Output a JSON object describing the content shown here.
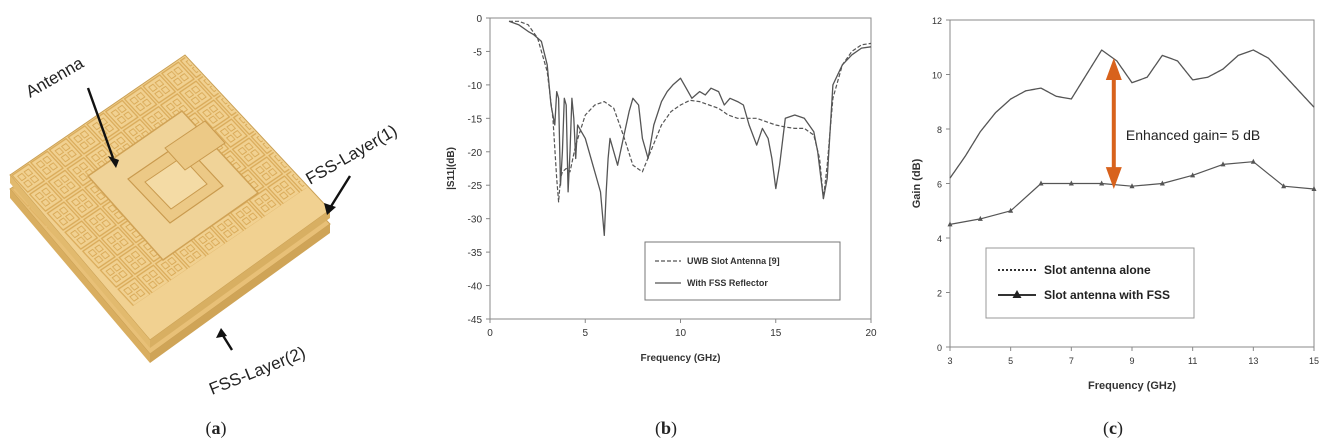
{
  "panel_a": {
    "caption_open": "(",
    "caption_letter": "a",
    "caption_close": ")",
    "labels": {
      "antenna": "Antenna",
      "fss_layer1": "FSS-Layer(1)",
      "fss_layer2": "FSS-Layer(2)"
    },
    "colors": {
      "board": "#f0cf8c",
      "board_edge": "#d6ac5c",
      "cell": "#e6bf72"
    }
  },
  "panel_b": {
    "caption_open": "(",
    "caption_letter": "b",
    "caption_close": ")"
  },
  "panel_c": {
    "caption_open": "(",
    "caption_letter": "c",
    "caption_close": ")",
    "annotation": "Enhanced gain= 5 dB",
    "arrow_color": "#d8621c"
  },
  "chart_data": [
    {
      "type": "line",
      "panel": "b",
      "xlabel": "Frequency (GHz)",
      "ylabel": "|S11|(dB)",
      "xlim": [
        0,
        20
      ],
      "ylim": [
        -45,
        0
      ],
      "xticks": [
        "0",
        "5",
        "10",
        "15",
        "20"
      ],
      "yticks": [
        "0",
        "-5",
        "-10",
        "-15",
        "-20",
        "-25",
        "-30",
        "-35",
        "-40",
        "-45"
      ],
      "grid": false,
      "legend_position": "lower-right",
      "series": [
        {
          "name": "UWB Slot Antenna [9]",
          "style": "dashed",
          "x": [
            1.0,
            1.5,
            2.0,
            2.5,
            3.0,
            3.3,
            3.5,
            3.6,
            3.7,
            3.8,
            4.0,
            4.2,
            4.5,
            5.0,
            5.5,
            6.0,
            6.5,
            7.0,
            7.5,
            8.0,
            8.5,
            9.0,
            9.5,
            10.0,
            10.5,
            11.0,
            11.5,
            12.0,
            12.5,
            13.0,
            13.5,
            14.0,
            14.5,
            15.0,
            15.5,
            16.0,
            16.5,
            17.0,
            17.3,
            17.5,
            17.7,
            18.0,
            18.5,
            19.0,
            19.5,
            20.0
          ],
          "y": [
            -0.5,
            -0.5,
            -1.0,
            -3.0,
            -8.0,
            -15.0,
            -24.0,
            -27.5,
            -24.0,
            -23.0,
            -22.5,
            -23.0,
            -19.0,
            -14.5,
            -13.0,
            -12.5,
            -13.5,
            -17.5,
            -22.0,
            -23.0,
            -19.5,
            -16.0,
            -14.0,
            -13.0,
            -12.3,
            -12.5,
            -13.0,
            -13.5,
            -14.5,
            -15.0,
            -15.0,
            -15.0,
            -15.5,
            -16.0,
            -16.3,
            -16.5,
            -16.5,
            -17.5,
            -21.0,
            -27.0,
            -22.0,
            -12.0,
            -7.0,
            -5.0,
            -4.0,
            -3.8
          ]
        },
        {
          "name": "With FSS Reflector",
          "style": "solid",
          "x": [
            1.0,
            1.5,
            2.0,
            2.3,
            2.7,
            3.0,
            3.2,
            3.4,
            3.5,
            3.6,
            3.7,
            3.8,
            3.9,
            4.0,
            4.1,
            4.2,
            4.3,
            4.4,
            4.5,
            4.6,
            4.8,
            5.0,
            5.2,
            5.4,
            5.6,
            5.8,
            6.0,
            6.1,
            6.2,
            6.3,
            6.5,
            6.7,
            7.0,
            7.3,
            7.5,
            7.8,
            8.0,
            8.3,
            8.6,
            9.0,
            9.3,
            9.6,
            10.0,
            10.3,
            10.6,
            11.0,
            11.3,
            11.6,
            12.0,
            12.3,
            12.6,
            13.0,
            13.3,
            13.6,
            14.0,
            14.3,
            14.6,
            14.8,
            15.0,
            15.2,
            15.5,
            16.0,
            16.5,
            17.0,
            17.2,
            17.5,
            17.7,
            18.0,
            18.5,
            19.0,
            19.5,
            20.0
          ],
          "y": [
            -0.5,
            -1.0,
            -2.0,
            -2.5,
            -3.5,
            -7.0,
            -13.0,
            -16.0,
            -11.0,
            -12.0,
            -25.0,
            -20.0,
            -12.0,
            -13.0,
            -26.0,
            -20.0,
            -12.0,
            -15.0,
            -21.0,
            -16.0,
            -17.0,
            -18.0,
            -20.0,
            -22.0,
            -24.0,
            -26.0,
            -32.5,
            -26.0,
            -21.0,
            -18.0,
            -20.0,
            -22.0,
            -18.0,
            -14.0,
            -12.0,
            -13.0,
            -18.0,
            -21.0,
            -16.0,
            -12.5,
            -11.0,
            -10.0,
            -9.0,
            -10.5,
            -12.0,
            -11.0,
            -11.5,
            -10.5,
            -11.0,
            -13.0,
            -12.0,
            -12.5,
            -13.0,
            -16.0,
            -19.0,
            -16.5,
            -18.0,
            -21.0,
            -25.5,
            -22.0,
            -15.0,
            -14.5,
            -15.0,
            -17.0,
            -20.0,
            -27.0,
            -24.0,
            -10.0,
            -7.0,
            -5.5,
            -4.5,
            -4.3
          ]
        }
      ]
    },
    {
      "type": "line",
      "panel": "c",
      "xlabel": "Frequency (GHz)",
      "ylabel": "Gain (dB)",
      "xlim": [
        3,
        15
      ],
      "ylim": [
        0,
        12
      ],
      "xticks": [
        "3",
        "5",
        "7",
        "9",
        "11",
        "13",
        "15"
      ],
      "yticks": [
        "0",
        "2",
        "4",
        "6",
        "8",
        "10",
        "12"
      ],
      "grid": false,
      "legend_position": "lower-center",
      "series": [
        {
          "name": "Slot antenna alone",
          "style": "dotted",
          "x": [
            3.0,
            3.5,
            4.0,
            4.5,
            5.0,
            5.5,
            6.0,
            6.5,
            7.0,
            7.5,
            8.0,
            8.5,
            9.0,
            9.5,
            10.0,
            10.5,
            11.0,
            11.5,
            12.0,
            12.5,
            13.0,
            13.5,
            14.0,
            14.5,
            15.0
          ],
          "y": [
            6.2,
            7.0,
            7.9,
            8.6,
            9.1,
            9.4,
            9.5,
            9.2,
            9.1,
            10.0,
            10.9,
            10.5,
            9.7,
            9.9,
            10.7,
            10.5,
            9.8,
            9.9,
            10.2,
            10.7,
            10.9,
            10.6,
            10.0,
            9.4,
            8.8
          ]
        },
        {
          "name": "Slot antenna with FSS",
          "style": "solid-triangle",
          "x": [
            3,
            4,
            5,
            6,
            7,
            8,
            9,
            10,
            11,
            12,
            13,
            14,
            15
          ],
          "y": [
            4.5,
            4.7,
            5.0,
            6.0,
            6.0,
            6.0,
            5.9,
            6.0,
            6.3,
            6.7,
            6.8,
            5.9,
            5.8
          ]
        }
      ]
    }
  ]
}
